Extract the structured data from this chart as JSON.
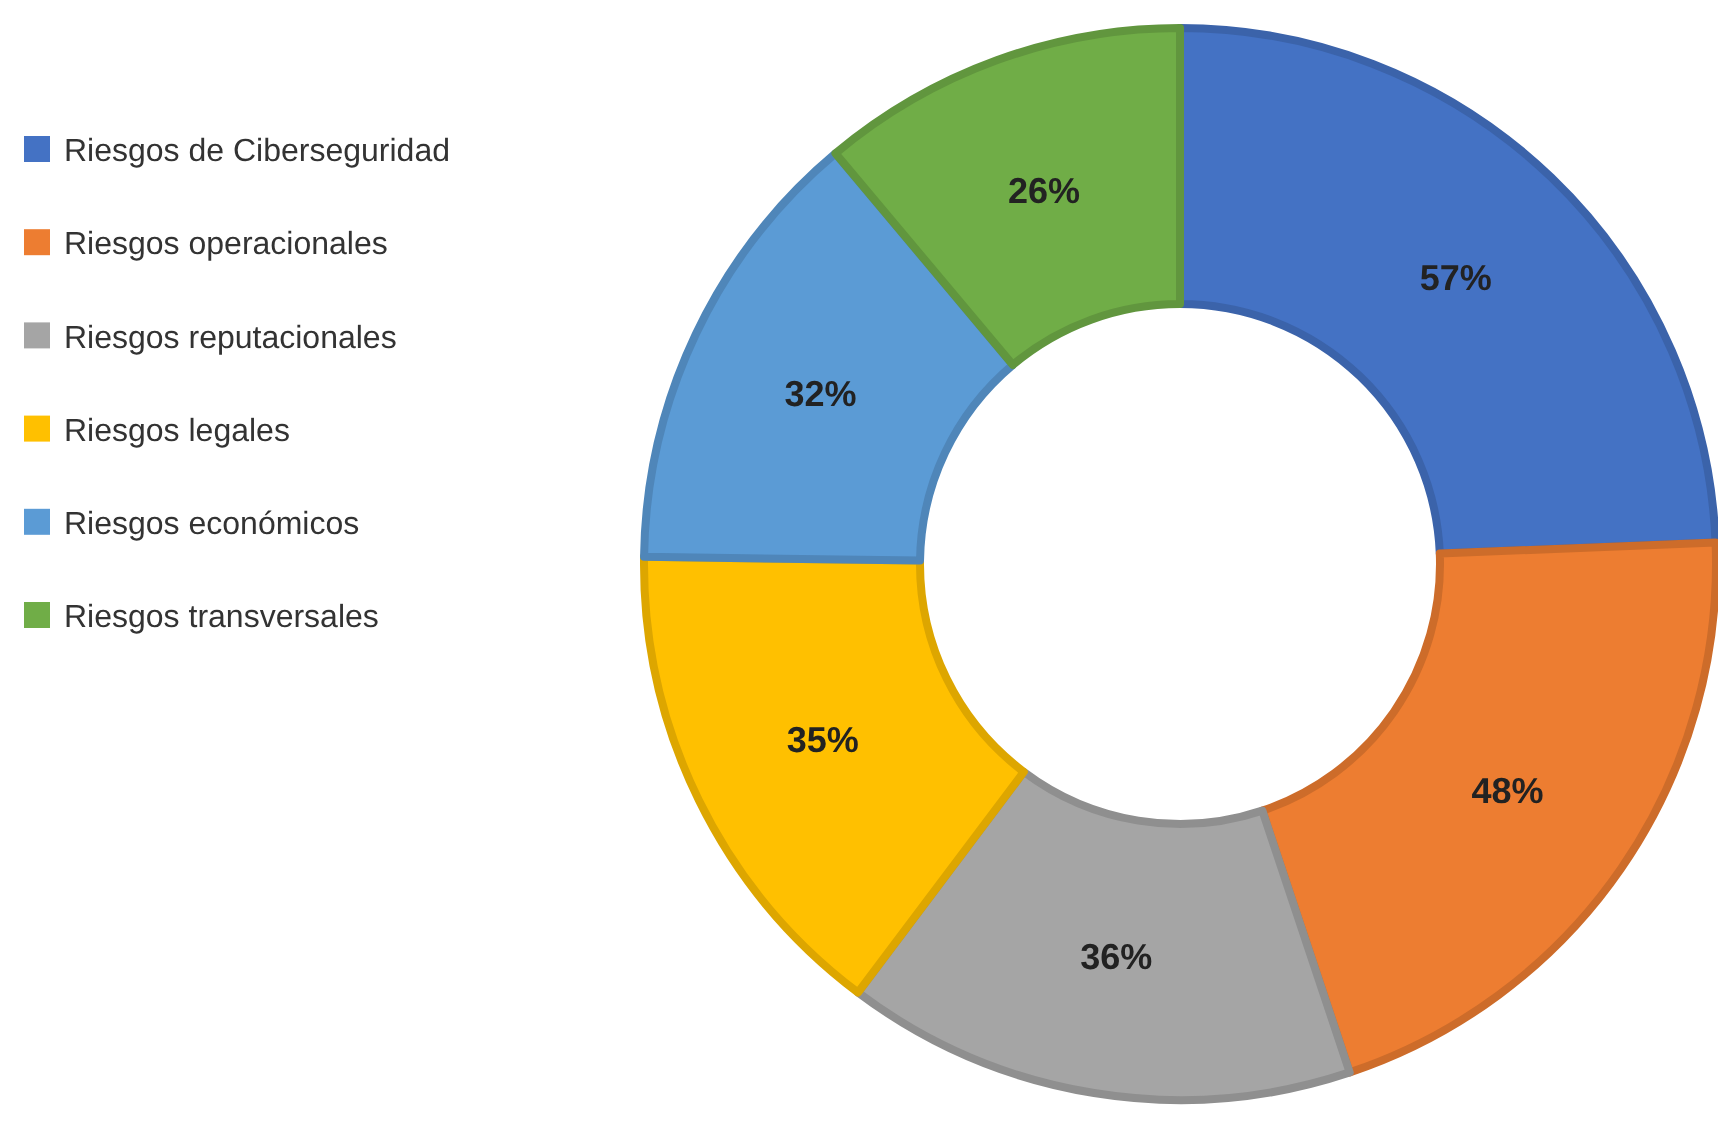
{
  "chart_data": {
    "type": "donut",
    "categories": [
      "Riesgos de Ciberseguridad",
      "Riesgos operacionales",
      "Riesgos reputacionales",
      "Riesgos legales",
      "Riesgos económicos",
      "Riesgos transversales"
    ],
    "values": [
      57,
      48,
      36,
      35,
      32,
      26
    ],
    "colors": [
      "#4472c4",
      "#ed7d31",
      "#a5a5a5",
      "#ffc000",
      "#5b9bd5",
      "#70ad47"
    ],
    "value_labels": [
      "57%",
      "48%",
      "36%",
      "35%",
      "32%",
      "26%"
    ],
    "legend": "left"
  }
}
